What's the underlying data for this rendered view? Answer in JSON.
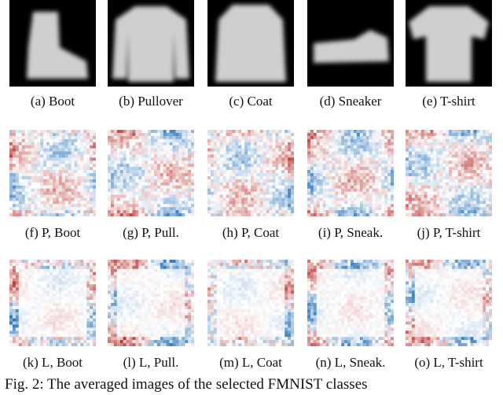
{
  "figure": {
    "panels": [
      {
        "label": "(a) Boot"
      },
      {
        "label": "(b) Pullover"
      },
      {
        "label": "(c) Coat"
      },
      {
        "label": "(d) Sneaker"
      },
      {
        "label": "(e) T-shirt"
      },
      {
        "label": "(f) P, Boot"
      },
      {
        "label": "(g) P, Pull."
      },
      {
        "label": "(h) P, Coat"
      },
      {
        "label": "(i) P, Sneak."
      },
      {
        "label": "(j) P, T-shirt"
      },
      {
        "label": "(k) L, Boot"
      },
      {
        "label": "(l) L, Pull."
      },
      {
        "label": "(m) L, Coat"
      },
      {
        "label": "(n) L, Sneak."
      },
      {
        "label": "(o) L, T-shirt"
      }
    ],
    "caption": "Fig. 2: The averaged images of the selected FMNIST classes"
  }
}
